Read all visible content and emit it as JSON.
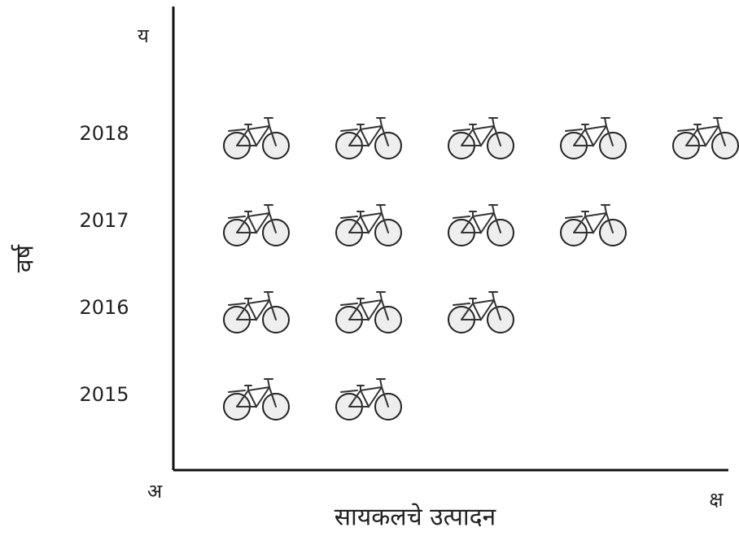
{
  "chart_data": {
    "type": "pictograph",
    "x_label": "सायकलचे उत्पादन",
    "y_label": "वर्ष",
    "origin_label": "अ",
    "y_axis_end_label": "य",
    "x_axis_end_label": "क्ष",
    "categories": [
      "2015",
      "2016",
      "2017",
      "2018"
    ],
    "values": [
      2,
      3,
      4,
      5
    ]
  }
}
